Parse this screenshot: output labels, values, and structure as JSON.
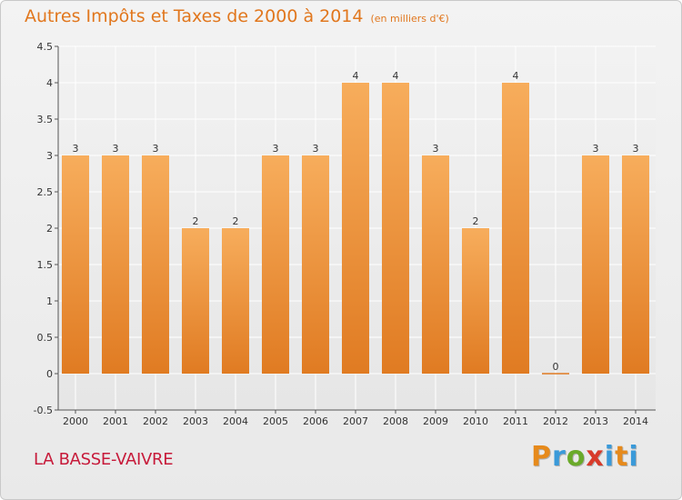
{
  "title": "Autres Impôts et Taxes de 2000 à 2014",
  "unit": "(en milliers d'€)",
  "commune": "LA BASSE-VAIVRE",
  "brand": {
    "text": "Proxiti",
    "letter_colors": [
      "#e68a1c",
      "#3a9ad9",
      "#6aaa2a",
      "#d83a2a",
      "#3a9ad9",
      "#e68a1c",
      "#3a9ad9"
    ]
  },
  "colors": {
    "bar_top": "#f7ad5c",
    "bar_bottom": "#e07b22",
    "title": "#e1771e",
    "commune": "#c71a3a"
  },
  "chart_data": {
    "type": "bar",
    "categories": [
      "2000",
      "2001",
      "2002",
      "2003",
      "2004",
      "2005",
      "2006",
      "2007",
      "2008",
      "2009",
      "2010",
      "2011",
      "2012",
      "2013",
      "2014"
    ],
    "values": [
      3,
      3,
      3,
      2,
      2,
      3,
      3,
      4,
      4,
      3,
      2,
      4,
      0,
      3,
      3
    ],
    "labels": [
      "3",
      "3",
      "3",
      "2",
      "2",
      "3",
      "3",
      "4",
      "4",
      "3",
      "2",
      "4",
      "0",
      "3",
      "3"
    ],
    "yticks": [
      "-0.5",
      "0",
      "0.5",
      "1",
      "1.5",
      "2",
      "2.5",
      "3",
      "3.5",
      "4",
      "4.5"
    ],
    "ylim": [
      -0.5,
      4.5
    ],
    "grid": true
  }
}
